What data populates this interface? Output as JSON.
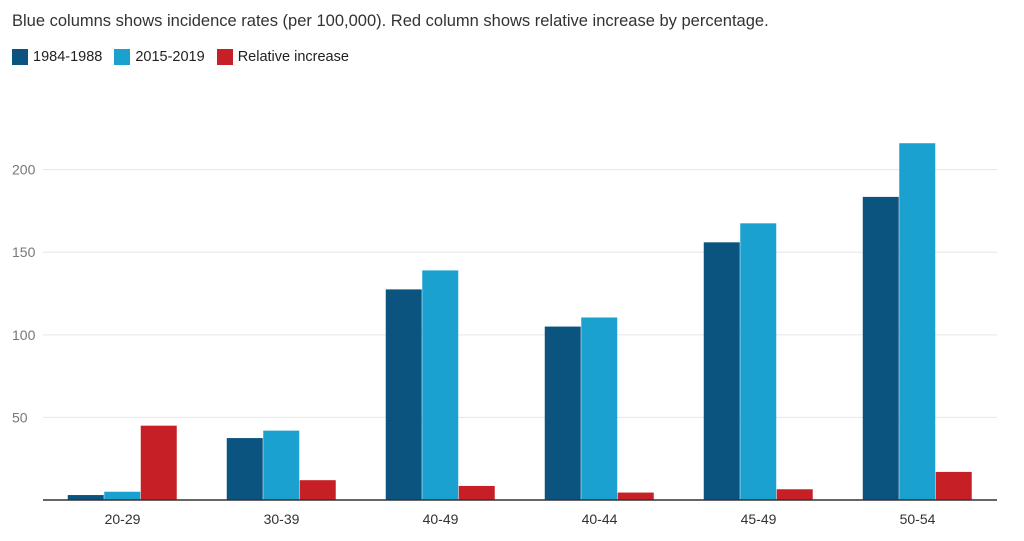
{
  "subtitle": "Blue columns shows incidence rates (per 100,000). Red column shows relative increase by percentage.",
  "legend": [
    {
      "label": "1984-1988",
      "color": "#0b5480"
    },
    {
      "label": "2015-2019",
      "color": "#1ba1d0"
    },
    {
      "label": "Relative increase",
      "color": "#c62026"
    }
  ],
  "chart_data": {
    "type": "bar",
    "title": "Blue columns shows incidence rates (per 100,000). Red column shows relative increase by percentage.",
    "xlabel": "",
    "ylabel": "",
    "categories": [
      "20-29",
      "30-39",
      "40-49",
      "40-44",
      "45-49",
      "50-54"
    ],
    "series": [
      {
        "name": "1984-1988",
        "color": "#0b5480",
        "values": [
          3,
          37.5,
          127.5,
          105,
          156,
          183.5
        ]
      },
      {
        "name": "2015-2019",
        "color": "#1ba1d0",
        "values": [
          5,
          42,
          139,
          110.5,
          167.5,
          216
        ]
      },
      {
        "name": "Relative increase",
        "color": "#c62026",
        "values": [
          45,
          12,
          8.5,
          4.5,
          6.5,
          17
        ]
      }
    ],
    "yticks": [
      50,
      100,
      150,
      200
    ],
    "ylim": [
      0,
      224
    ],
    "grid": true,
    "legend_position": "top-left"
  }
}
